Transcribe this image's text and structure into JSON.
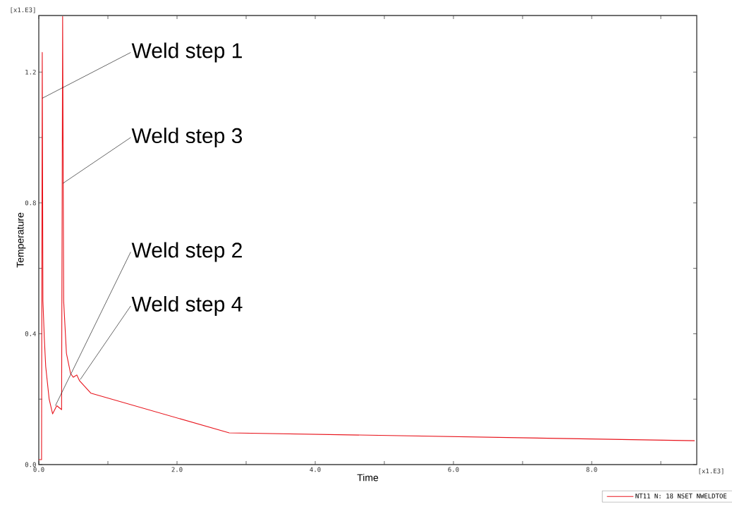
{
  "chart_data": {
    "type": "line",
    "xlabel": "Time",
    "ylabel": "Temperature",
    "x": [
      0,
      0.04,
      0.05,
      0.06,
      0.08,
      0.1,
      0.15,
      0.2,
      0.26,
      0.33,
      0.345,
      0.36,
      0.4,
      0.46,
      0.5,
      0.52,
      0.55,
      0.59,
      0.755,
      2.755,
      9.49
    ],
    "series": [
      {
        "name": "NT11 N: 18 NSET NWELDTOE",
        "color": "#e8141c",
        "values": [
          0.015,
          0.015,
          1.26,
          0.5,
          0.386,
          0.3,
          0.2,
          0.155,
          0.18,
          0.168,
          1.37,
          0.5,
          0.34,
          0.278,
          0.267,
          0.27,
          0.274,
          0.256,
          0.218,
          0.097,
          0.073
        ]
      }
    ],
    "xlim": [
      0,
      9.52
    ],
    "ylim": [
      0,
      1.373
    ],
    "xticks": [
      {
        "value": 0,
        "label": "0.0"
      },
      {
        "value": 1,
        "label": null
      },
      {
        "value": 2,
        "label": "2.0"
      },
      {
        "value": 3,
        "label": null
      },
      {
        "value": 4,
        "label": "4.0"
      },
      {
        "value": 5,
        "label": null
      },
      {
        "value": 6,
        "label": "6.0"
      },
      {
        "value": 7,
        "label": null
      },
      {
        "value": 8,
        "label": "8.0"
      },
      {
        "value": 9,
        "label": null
      }
    ],
    "yticks": [
      {
        "value": 0,
        "label": "0.0"
      },
      {
        "value": 0.2,
        "label": null
      },
      {
        "value": 0.4,
        "label": "0.4"
      },
      {
        "value": 0.6,
        "label": null
      },
      {
        "value": 0.8,
        "label": "0.8"
      },
      {
        "value": 1.0,
        "label": null
      },
      {
        "value": 1.2,
        "label": "1.2"
      }
    ],
    "annotations": [
      {
        "text": "Weld step 1",
        "x": 0.05,
        "y": 1.12
      },
      {
        "text": "Weld step 3",
        "x": 0.35,
        "y": 0.86
      },
      {
        "text": "Weld step 2",
        "x": 0.24,
        "y": 0.18
      },
      {
        "text": "Weld step 4",
        "x": 0.6,
        "y": 0.26
      },
      "[x1.E3]",
      "[x1.E3]"
    ],
    "grid": false,
    "legend": "bottom right",
    "marker": "none",
    "line_style": "solid"
  }
}
